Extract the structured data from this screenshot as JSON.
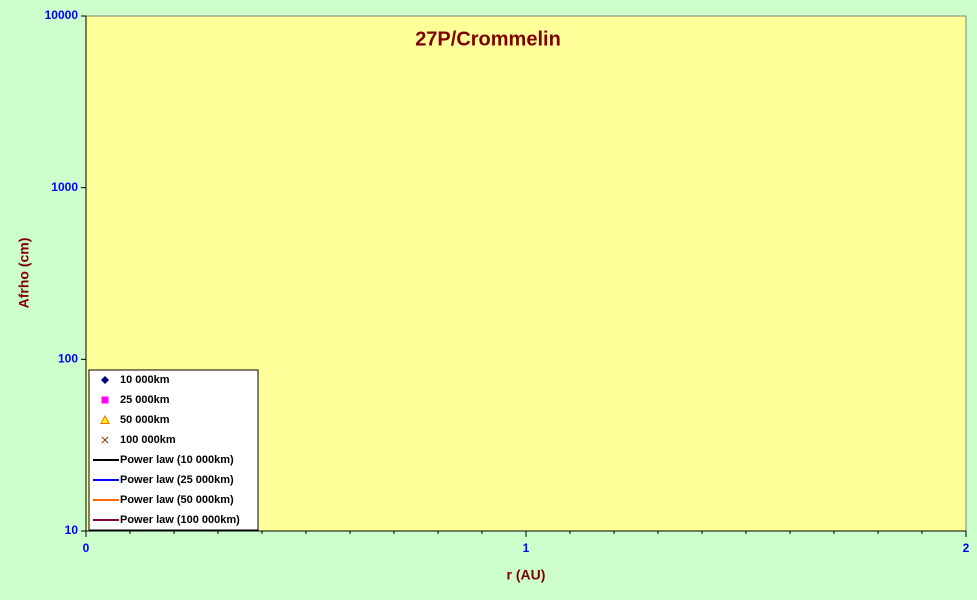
{
  "chart_data": {
    "type": "scatter",
    "title": "27P/Crommelin",
    "x_label": "r (AU)",
    "y_label": "Afrho (cm)",
    "xlim": [
      0,
      2
    ],
    "xticks": [
      0,
      1,
      2
    ],
    "ylim": [
      10,
      10000
    ],
    "yticks": [
      10,
      100,
      1000,
      10000
    ],
    "y_scale": "log",
    "grid": false,
    "legend": "lower left",
    "series": [
      {
        "name": "10 000km",
        "color": "#000080",
        "marker": "diamond",
        "x": [],
        "values": []
      },
      {
        "name": "25 000km",
        "color": "#ff00ff",
        "marker": "square",
        "x": [],
        "values": []
      },
      {
        "name": "50 000km",
        "color": "#ff6600",
        "marker": "triangle",
        "x": [],
        "values": []
      },
      {
        "name": "100 000km",
        "color": "#993300",
        "marker": "x",
        "x": [],
        "values": []
      },
      {
        "name": "Power law (10 000km)",
        "color": "#000000",
        "marker": "line",
        "x": [],
        "values": []
      },
      {
        "name": "Power law (25 000km)",
        "color": "#0000ff",
        "marker": "line",
        "x": [],
        "values": []
      },
      {
        "name": "Power law (50 000km)",
        "color": "#ff6600",
        "marker": "line",
        "x": [],
        "values": []
      },
      {
        "name": "Power law (100 000km)",
        "color": "#800040",
        "marker": "line",
        "x": [],
        "values": []
      }
    ]
  }
}
